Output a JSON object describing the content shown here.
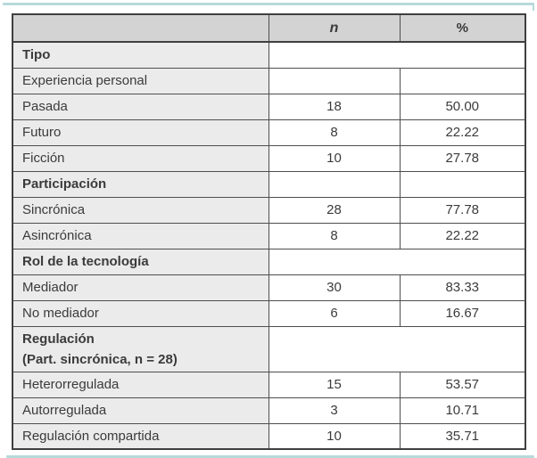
{
  "colors": {
    "rule": "#b7d9db",
    "border": "#4e4e4e",
    "border_heavy": "#3f3f3f",
    "header_bg": "#d3d3d3",
    "label_bg": "#ebebeb",
    "text": "#3b3b3b"
  },
  "table": {
    "header": {
      "label": "",
      "n": "n",
      "pct": "%"
    },
    "rows": [
      {
        "label": "Tipo",
        "style": "section",
        "merged": true,
        "n": "",
        "pct": ""
      },
      {
        "label": "Experiencia personal",
        "style": "plain",
        "merged": false,
        "n": "",
        "pct": ""
      },
      {
        "label": "Pasada",
        "style": "data",
        "merged": false,
        "n": "18",
        "pct": "50.00"
      },
      {
        "label": "Futuro",
        "style": "data",
        "merged": false,
        "n": "8",
        "pct": "22.22"
      },
      {
        "label": "Ficción",
        "style": "data",
        "merged": false,
        "n": "10",
        "pct": "27.78"
      },
      {
        "label": "Participación",
        "style": "section",
        "merged": false,
        "n": "",
        "pct": ""
      },
      {
        "label": "Sincrónica",
        "style": "data",
        "merged": false,
        "n": "28",
        "pct": "77.78"
      },
      {
        "label": "Asincrónica",
        "style": "data",
        "merged": false,
        "n": "8",
        "pct": "22.22"
      },
      {
        "label": "Rol de la tecnología",
        "style": "section",
        "merged": true,
        "n": "",
        "pct": ""
      },
      {
        "label": "Mediador",
        "style": "data",
        "merged": false,
        "n": "30",
        "pct": "83.33"
      },
      {
        "label": "No mediador",
        "style": "data",
        "merged": false,
        "n": "6",
        "pct": "16.67"
      },
      {
        "label": "Regulación",
        "label2": "(Part. sincrónica, n = 28)",
        "style": "section",
        "merged": true,
        "n": "",
        "pct": ""
      },
      {
        "label": "Heterorregulada",
        "style": "data",
        "merged": false,
        "n": "15",
        "pct": "53.57"
      },
      {
        "label": "Autorregulada",
        "style": "data",
        "merged": false,
        "n": "3",
        "pct": "10.71"
      },
      {
        "label": "Regulación compartida",
        "style": "data",
        "merged": false,
        "n": "10",
        "pct": "35.71"
      }
    ]
  }
}
